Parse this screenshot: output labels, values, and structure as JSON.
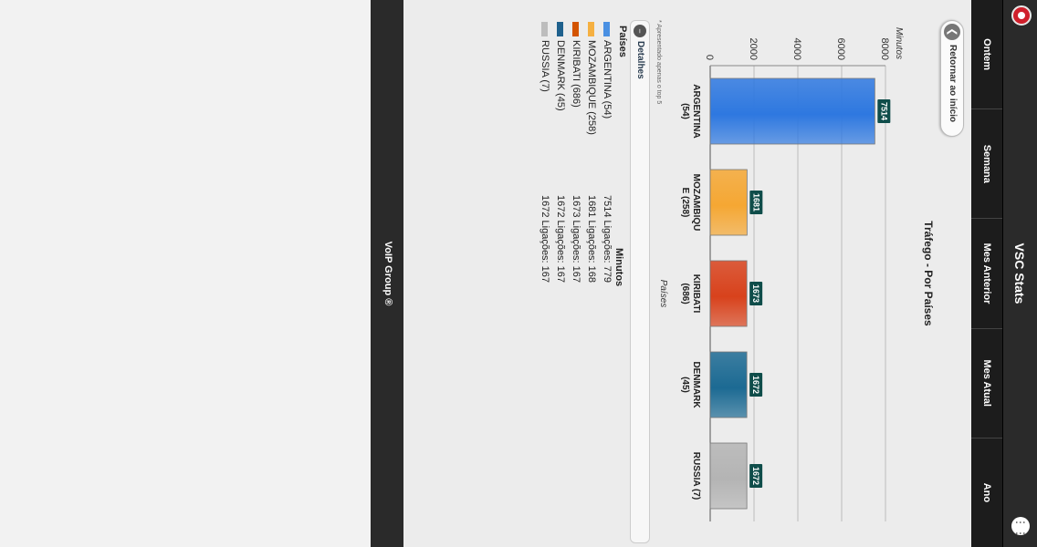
{
  "app": {
    "title": "VSC Stats",
    "footer": "VoIP Group ®"
  },
  "header": {
    "left_icon": "record-icon",
    "right_icon": "grid-menu-icon"
  },
  "nav": [
    "Ontem",
    "Semana",
    "Mes Anterior",
    "Mes Atual",
    "Ano"
  ],
  "back_button": {
    "label": "Retornar ao início",
    "icon": "chevron-left-icon"
  },
  "chart_title": "Tráfego - Por Países",
  "chart_data": {
    "type": "bar",
    "title": "Tráfego - Por Países",
    "xlabel": "Países",
    "ylabel": "Minutos",
    "categories": [
      "ARGENTINA (54)",
      "MOZAMBIQUE (258)",
      "KIRIBATI (686)",
      "DENMARK (45)",
      "RUSSIA (7)"
    ],
    "category_labels": [
      [
        "ARGENTINA",
        "(54)"
      ],
      [
        "MOZAMBIQU",
        "E (258)"
      ],
      [
        "KIRIBATI",
        "(686)"
      ],
      [
        "DENMARK",
        "(45)"
      ],
      [
        "RUSSIA (7)"
      ]
    ],
    "values": [
      7514,
      1681,
      1673,
      1672,
      1672
    ],
    "colors": [
      "#2e78e0",
      "#f5a733",
      "#d8421c",
      "#1c6a93",
      "#b4b4b4"
    ],
    "ylim": [
      0,
      8000
    ],
    "yticks": [
      0,
      2000,
      4000,
      6000,
      8000
    ],
    "grid": true,
    "legend": "none"
  },
  "footnote": "* Apresentado apenas o top 5",
  "details": {
    "label": "Detalhes",
    "col_country": "Países",
    "col_minutes": "Minutos",
    "rows": [
      {
        "country": "ARGENTINA (54)",
        "value": "7514 Ligações: 779",
        "color": "#4a90e2"
      },
      {
        "country": "MOZAMBIQUE (258)",
        "value": "1681 Ligações: 168",
        "color": "#f5b041"
      },
      {
        "country": "KIRIBATI (686)",
        "value": "1673 Ligações: 167",
        "color": "#d35400"
      },
      {
        "country": "DENMARK (45)",
        "value": "1672 Ligações: 167",
        "color": "#1f618d"
      },
      {
        "country": "RUSSIA (7)",
        "value": "1672 Ligações: 167",
        "color": "#bdbdbd"
      }
    ]
  }
}
